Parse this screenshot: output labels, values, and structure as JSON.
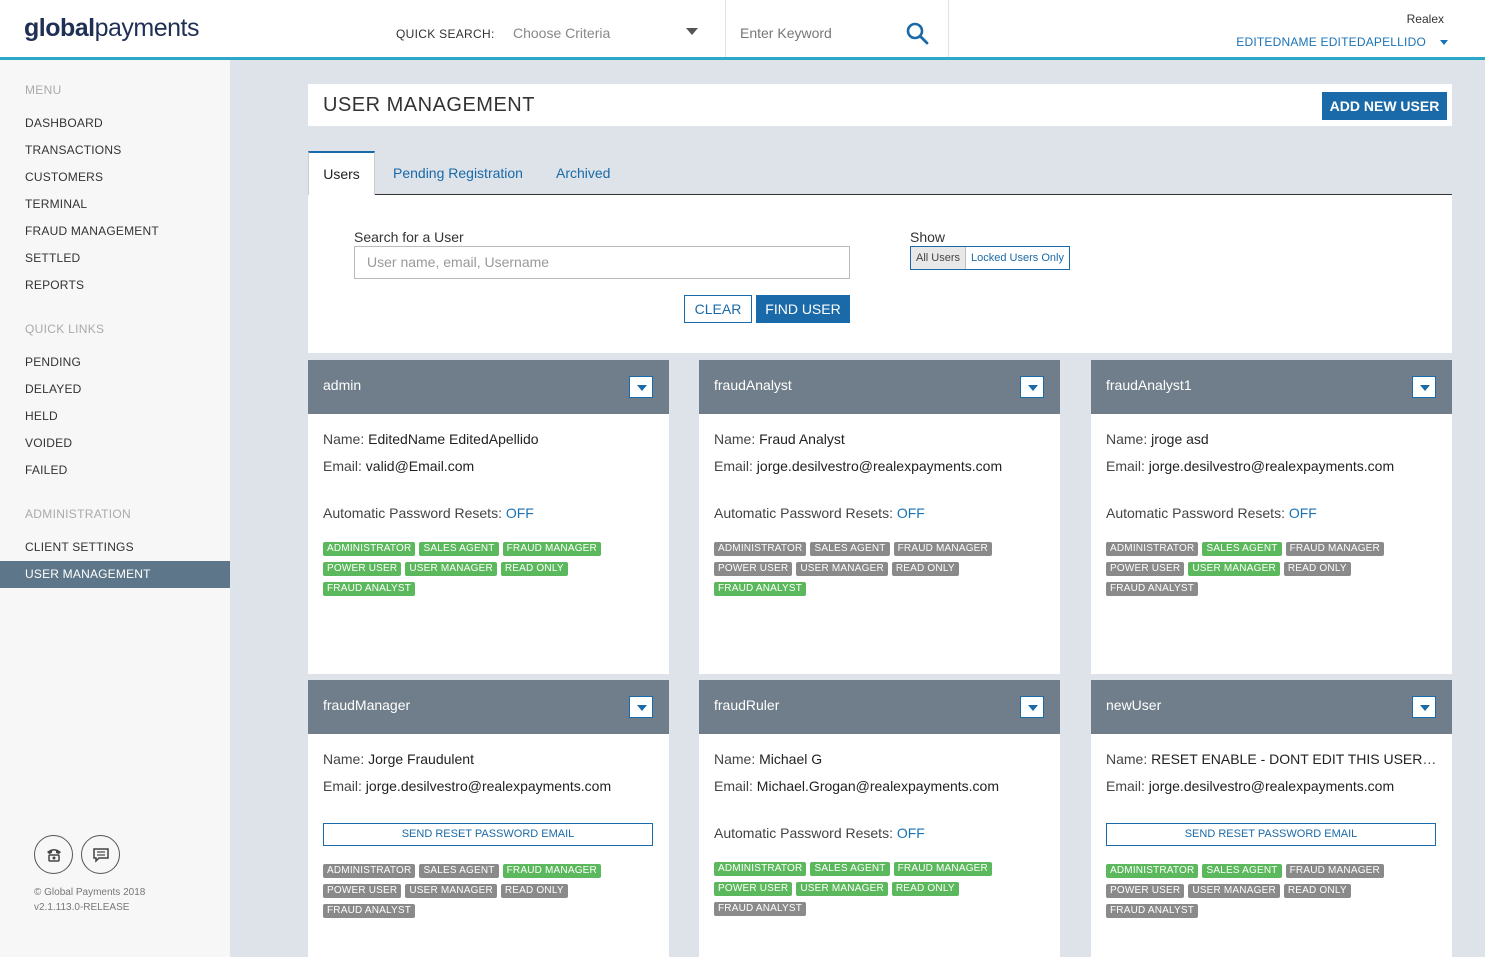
{
  "header": {
    "logo_bold": "global",
    "logo_light": "payments",
    "quick_search_label": "QUICK SEARCH:",
    "criteria_placeholder": "Choose Criteria",
    "keyword_placeholder": "Enter Keyword",
    "merchant": "Realex",
    "user": "EDITEDNAME EDITEDAPELLIDO"
  },
  "sidebar": {
    "menu_title": "MENU",
    "menu": [
      "DASHBOARD",
      "TRANSACTIONS",
      "CUSTOMERS",
      "TERMINAL",
      "FRAUD MANAGEMENT",
      "SETTLED",
      "REPORTS"
    ],
    "quick_title": "QUICK LINKS",
    "quick": [
      "PENDING",
      "DELAYED",
      "HELD",
      "VOIDED",
      "FAILED"
    ],
    "admin_title": "ADMINISTRATION",
    "admin": [
      "CLIENT SETTINGS",
      "USER MANAGEMENT"
    ],
    "copyright": "© Global Payments 2018",
    "version": "v2.1.113.0-RELEASE"
  },
  "page": {
    "title": "USER MANAGEMENT",
    "add_button": "ADD NEW USER",
    "tabs": [
      "Users",
      "Pending Registration",
      "Archived"
    ]
  },
  "filter": {
    "search_label": "Search for a User",
    "search_placeholder": "User name, email, Username",
    "show_label": "Show",
    "show_all": "All Users",
    "show_locked": "Locked Users Only",
    "clear": "CLEAR",
    "find": "FIND USER"
  },
  "labels": {
    "name": "Name:",
    "email": "Email:",
    "auto_reset": "Automatic Password Resets:",
    "reset_button": "SEND RESET PASSWORD EMAIL"
  },
  "cards": [
    {
      "username": "admin",
      "name": "EditedName EditedApellido",
      "email": "valid@Email.com",
      "auto_reset": "OFF",
      "roles": [
        [
          "ADMINISTRATOR",
          true
        ],
        [
          "SALES AGENT",
          true
        ],
        [
          "FRAUD MANAGER",
          true
        ],
        [
          "POWER USER",
          true
        ],
        [
          "USER MANAGER",
          true
        ],
        [
          "READ ONLY",
          true
        ],
        [
          "FRAUD ANALYST",
          true
        ]
      ]
    },
    {
      "username": "fraudAnalyst",
      "name": "Fraud Analyst",
      "email": "jorge.desilvestro@realexpayments.com",
      "auto_reset": "OFF",
      "roles": [
        [
          "ADMINISTRATOR",
          false
        ],
        [
          "SALES AGENT",
          false
        ],
        [
          "FRAUD MANAGER",
          false
        ],
        [
          "POWER USER",
          false
        ],
        [
          "USER MANAGER",
          false
        ],
        [
          "READ ONLY",
          false
        ],
        [
          "FRAUD ANALYST",
          true
        ]
      ]
    },
    {
      "username": "fraudAnalyst1",
      "name": "jroge asd",
      "email": "jorge.desilvestro@realexpayments.com",
      "auto_reset": "OFF",
      "roles": [
        [
          "ADMINISTRATOR",
          false
        ],
        [
          "SALES AGENT",
          true
        ],
        [
          "FRAUD MANAGER",
          false
        ],
        [
          "POWER USER",
          false
        ],
        [
          "USER MANAGER",
          true
        ],
        [
          "READ ONLY",
          false
        ],
        [
          "FRAUD ANALYST",
          false
        ]
      ]
    },
    {
      "username": "fraudManager",
      "name": "Jorge Fraudulent",
      "email": "jorge.desilvestro@realexpayments.com",
      "reset_button": true,
      "roles": [
        [
          "ADMINISTRATOR",
          false
        ],
        [
          "SALES AGENT",
          false
        ],
        [
          "FRAUD MANAGER",
          true
        ],
        [
          "POWER USER",
          false
        ],
        [
          "USER MANAGER",
          false
        ],
        [
          "READ ONLY",
          false
        ],
        [
          "FRAUD ANALYST",
          false
        ]
      ]
    },
    {
      "username": "fraudRuler",
      "name": "Michael G",
      "email": "Michael.Grogan@realexpayments.com",
      "auto_reset": "OFF",
      "roles": [
        [
          "ADMINISTRATOR",
          true
        ],
        [
          "SALES AGENT",
          true
        ],
        [
          "FRAUD MANAGER",
          true
        ],
        [
          "POWER USER",
          true
        ],
        [
          "USER MANAGER",
          true
        ],
        [
          "READ ONLY",
          true
        ],
        [
          "FRAUD ANALYST",
          false
        ]
      ]
    },
    {
      "username": "newUser",
      "name": "RESET ENABLE - DONT EDIT THIS USER ne…",
      "email": "jorge.desilvestro@realexpayments.com",
      "reset_button": true,
      "roles": [
        [
          "ADMINISTRATOR",
          true
        ],
        [
          "SALES AGENT",
          true
        ],
        [
          "FRAUD MANAGER",
          false
        ],
        [
          "POWER USER",
          false
        ],
        [
          "USER MANAGER",
          false
        ],
        [
          "READ ONLY",
          false
        ],
        [
          "FRAUD ANALYST",
          false
        ]
      ]
    }
  ]
}
